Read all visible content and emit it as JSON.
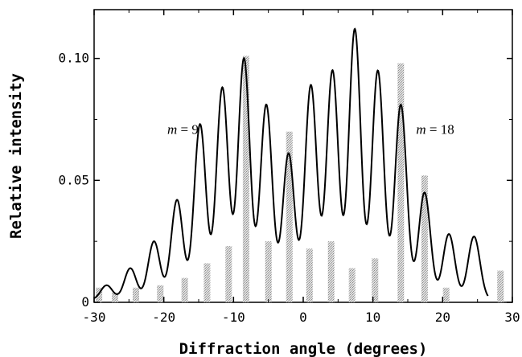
{
  "chart_data": {
    "type": "line",
    "title": "",
    "xlabel": "Diffraction angle (degrees)",
    "ylabel": "Relative intensity",
    "xlim": [
      -30,
      30
    ],
    "ylim": [
      0,
      0.12
    ],
    "xticks": [
      -30,
      -20,
      -10,
      0,
      10,
      20,
      30
    ],
    "xtick_labels": [
      "-30",
      "-20",
      "-10",
      "0",
      "10",
      "20",
      "30"
    ],
    "yticks": [
      0,
      0.05,
      0.1
    ],
    "ytick_labels": [
      "0",
      "0.05",
      "0.10"
    ],
    "grid": false,
    "series": [
      {
        "style": "solid-black-curve",
        "x_range": [
          -30,
          26.5
        ],
        "peaks": [
          {
            "x": -28.2,
            "y": 0.006
          },
          {
            "x": -24.8,
            "y": 0.013
          },
          {
            "x": -21.4,
            "y": 0.024
          },
          {
            "x": -18.1,
            "y": 0.041
          },
          {
            "x": -14.8,
            "y": 0.072
          },
          {
            "x": -11.6,
            "y": 0.087
          },
          {
            "x": -8.5,
            "y": 0.099
          },
          {
            "x": -5.3,
            "y": 0.08
          },
          {
            "x": -2.1,
            "y": 0.06
          },
          {
            "x": 1.1,
            "y": 0.088
          },
          {
            "x": 4.2,
            "y": 0.094
          },
          {
            "x": 7.4,
            "y": 0.111
          },
          {
            "x": 10.7,
            "y": 0.094
          },
          {
            "x": 14.0,
            "y": 0.08
          },
          {
            "x": 17.4,
            "y": 0.044
          },
          {
            "x": 20.9,
            "y": 0.027
          },
          {
            "x": 24.5,
            "y": 0.026
          }
        ]
      },
      {
        "style": "gray-stippled-bars",
        "bars": [
          {
            "x": -29.3,
            "y": 0.006
          },
          {
            "x": -27.0,
            "y": 0.004
          },
          {
            "x": -24.0,
            "y": 0.006
          },
          {
            "x": -20.5,
            "y": 0.007
          },
          {
            "x": -17.0,
            "y": 0.01
          },
          {
            "x": -13.8,
            "y": 0.016
          },
          {
            "x": -10.7,
            "y": 0.023
          },
          {
            "x": -8.2,
            "y": 0.101
          },
          {
            "x": -5.0,
            "y": 0.025
          },
          {
            "x": -2.0,
            "y": 0.07
          },
          {
            "x": 0.9,
            "y": 0.022
          },
          {
            "x": 4.0,
            "y": 0.025
          },
          {
            "x": 7.0,
            "y": 0.014
          },
          {
            "x": 10.3,
            "y": 0.018
          },
          {
            "x": 14.0,
            "y": 0.098
          },
          {
            "x": 17.4,
            "y": 0.052
          },
          {
            "x": 20.5,
            "y": 0.006
          },
          {
            "x": 28.3,
            "y": 0.013
          }
        ]
      }
    ],
    "annotations": [
      {
        "italic": "m",
        "rest": " = 9",
        "x": -19.5,
        "y": 0.069
      },
      {
        "italic": "m",
        "rest": " = 18",
        "x": 16.2,
        "y": 0.069
      }
    ]
  }
}
